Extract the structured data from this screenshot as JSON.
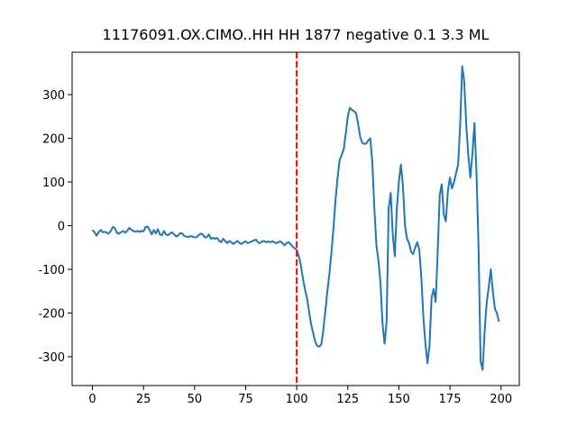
{
  "chart_data": {
    "type": "line",
    "title": "11176091.OX.CIMO..HH HH 1877 negative 0.1 3.3 ML",
    "x": [
      0,
      1,
      2,
      3,
      4,
      5,
      6,
      7,
      8,
      9,
      10,
      11,
      12,
      13,
      14,
      15,
      16,
      17,
      18,
      19,
      20,
      21,
      22,
      23,
      24,
      25,
      26,
      27,
      28,
      29,
      30,
      31,
      32,
      33,
      34,
      35,
      36,
      37,
      38,
      39,
      40,
      41,
      42,
      43,
      44,
      45,
      46,
      47,
      48,
      49,
      50,
      51,
      52,
      53,
      54,
      55,
      56,
      57,
      58,
      59,
      60,
      61,
      62,
      63,
      64,
      65,
      66,
      67,
      68,
      69,
      70,
      71,
      72,
      73,
      74,
      75,
      76,
      77,
      78,
      79,
      80,
      81,
      82,
      83,
      84,
      85,
      86,
      87,
      88,
      89,
      90,
      91,
      92,
      93,
      94,
      95,
      96,
      97,
      98,
      99,
      100,
      101,
      102,
      103,
      104,
      105,
      106,
      107,
      108,
      109,
      110,
      111,
      112,
      113,
      114,
      115,
      116,
      117,
      118,
      119,
      120,
      121,
      122,
      123,
      124,
      125,
      126,
      127,
      128,
      129,
      130,
      131,
      132,
      133,
      134,
      135,
      136,
      137,
      138,
      139,
      140,
      141,
      142,
      143,
      144,
      145,
      146,
      147,
      148,
      149,
      150,
      151,
      152,
      153,
      154,
      155,
      156,
      157,
      158,
      159,
      160,
      161,
      162,
      163,
      164,
      165,
      166,
      167,
      168,
      169,
      170,
      171,
      172,
      173,
      174,
      175,
      176,
      177,
      178,
      179,
      180,
      181,
      182,
      183,
      184,
      185,
      186,
      187,
      188,
      189,
      190,
      191,
      192,
      193,
      194,
      195,
      196,
      197,
      198,
      199
    ],
    "series": [
      {
        "color": "#1f77b4",
        "values": [
          -10,
          -15,
          -23,
          -15,
          -10,
          -15,
          -14,
          -16,
          -18,
          -12,
          -3,
          -6,
          -17,
          -18,
          -15,
          -12,
          -16,
          -12,
          -5,
          -9,
          -12,
          -14,
          -12,
          -14,
          -12,
          -13,
          -3,
          -2,
          -10,
          -20,
          -10,
          -18,
          -8,
          -20,
          -22,
          -12,
          -20,
          -22,
          -18,
          -15,
          -20,
          -25,
          -22,
          -17,
          -18,
          -24,
          -25,
          -26,
          -24,
          -25,
          -27,
          -26,
          -22,
          -18,
          -20,
          -27,
          -26,
          -20,
          -30,
          -28,
          -30,
          -28,
          -35,
          -38,
          -30,
          -35,
          -40,
          -35,
          -38,
          -42,
          -38,
          -35,
          -40,
          -42,
          -38,
          -36,
          -40,
          -38,
          -36,
          -34,
          -32,
          -38,
          -40,
          -36,
          -35,
          -38,
          -36,
          -38,
          -36,
          -38,
          -40,
          -38,
          -36,
          -40,
          -45,
          -40,
          -38,
          -42,
          -48,
          -52,
          -55,
          -70,
          -90,
          -120,
          -145,
          -165,
          -195,
          -225,
          -245,
          -265,
          -275,
          -277,
          -272,
          -240,
          -195,
          -150,
          -110,
          -60,
          -5,
          60,
          110,
          150,
          162,
          175,
          210,
          250,
          270,
          265,
          262,
          258,
          235,
          205,
          190,
          187,
          188,
          195,
          200,
          145,
          40,
          -45,
          -80,
          -130,
          -225,
          -270,
          -220,
          40,
          75,
          -20,
          -70,
          40,
          100,
          140,
          90,
          0,
          -30,
          -40,
          -60,
          -65,
          -50,
          -38,
          -55,
          -120,
          -210,
          -270,
          -315,
          -275,
          -165,
          -145,
          -175,
          -60,
          70,
          95,
          25,
          10,
          80,
          110,
          85,
          100,
          120,
          140,
          230,
          365,
          330,
          230,
          160,
          110,
          165,
          235,
          120,
          -50,
          -310,
          -330,
          -240,
          -175,
          -140,
          -100,
          -150,
          -190,
          -200,
          -220
        ]
      }
    ],
    "vline": 100,
    "vline_color": "#ff0000",
    "xlim": [
      -9.95,
      208.95
    ],
    "xticks": [
      0,
      25,
      50,
      75,
      100,
      125,
      150,
      175,
      200
    ],
    "ylim": [
      -366,
      397
    ],
    "yticks": [
      -300,
      -200,
      -100,
      0,
      100,
      200,
      300
    ]
  }
}
